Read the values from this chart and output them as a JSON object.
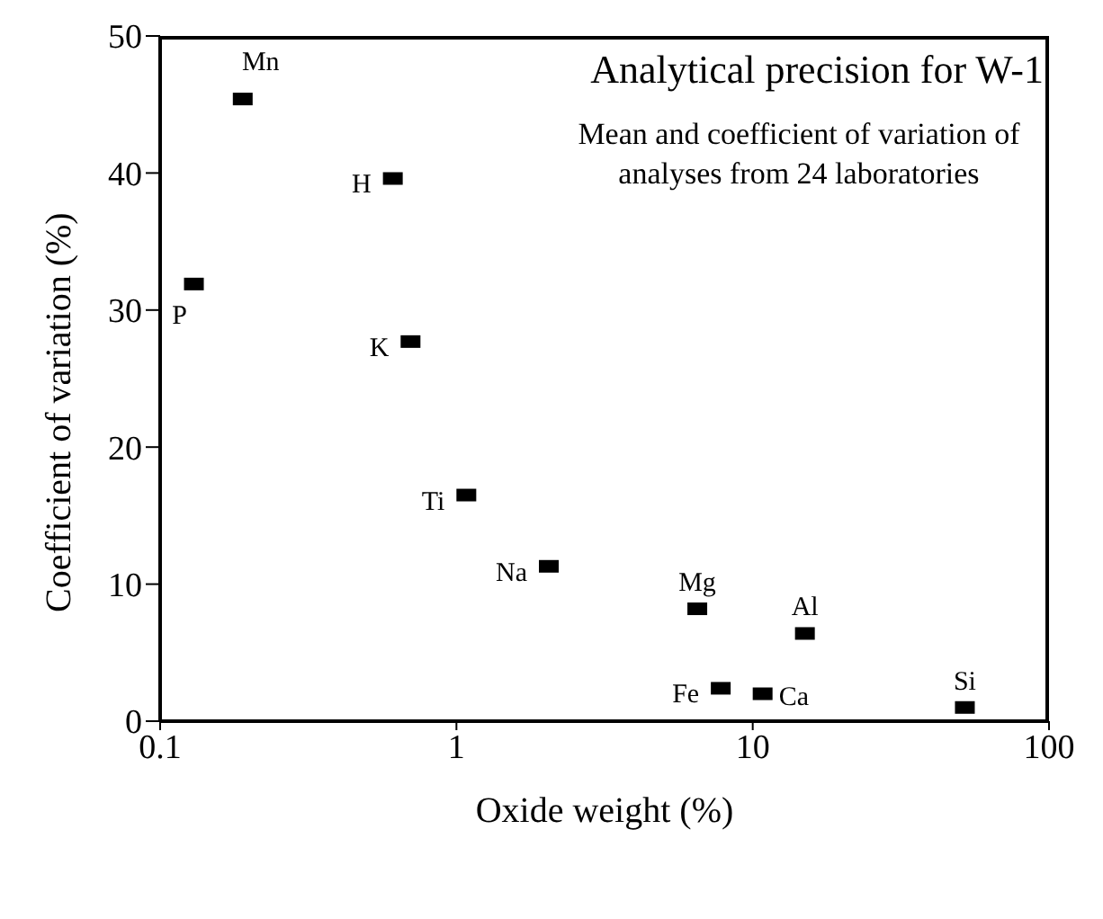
{
  "chart_data": {
    "type": "scatter",
    "title": "Analytical precision for W-1",
    "subtitle": "Mean and coefficient of variation of analyses from 24 laboratories",
    "xlabel": "Oxide weight (%)",
    "ylabel": "Coefficient of variation (%)",
    "log": "x",
    "xlim": [
      0.1,
      100
    ],
    "xticks": [
      0.1,
      1,
      10,
      100
    ],
    "ylim": [
      0,
      50
    ],
    "yticks": [
      0,
      10,
      20,
      30,
      40,
      50
    ],
    "grid": false,
    "legend": false,
    "marker": "square",
    "series": [
      {
        "name": "Mn",
        "color": "#000000",
        "x": [
          0.19
        ],
        "values": [
          45.4
        ]
      },
      {
        "name": "H",
        "color": "#000000",
        "x": [
          0.61
        ],
        "values": [
          39.6
        ]
      },
      {
        "name": "P",
        "color": "#000000",
        "x": [
          0.13
        ],
        "values": [
          31.9
        ]
      },
      {
        "name": "K",
        "color": "#000000",
        "x": [
          0.7
        ],
        "values": [
          27.7
        ]
      },
      {
        "name": "Ti",
        "color": "#000000",
        "x": [
          1.08
        ],
        "values": [
          16.5
        ]
      },
      {
        "name": "Na",
        "color": "#000000",
        "x": [
          2.05
        ],
        "values": [
          11.3
        ]
      },
      {
        "name": "Mg",
        "color": "#000000",
        "x": [
          6.5
        ],
        "values": [
          8.2
        ]
      },
      {
        "name": "Al",
        "color": "#000000",
        "x": [
          15
        ],
        "values": [
          6.4
        ]
      },
      {
        "name": "Fe",
        "color": "#000000",
        "x": [
          7.8
        ],
        "values": [
          2.4
        ]
      },
      {
        "name": "Ca",
        "color": "#000000",
        "x": [
          10.8
        ],
        "values": [
          2.0
        ]
      },
      {
        "name": "Si",
        "color": "#000000",
        "x": [
          52
        ],
        "values": [
          1.0
        ]
      }
    ]
  }
}
